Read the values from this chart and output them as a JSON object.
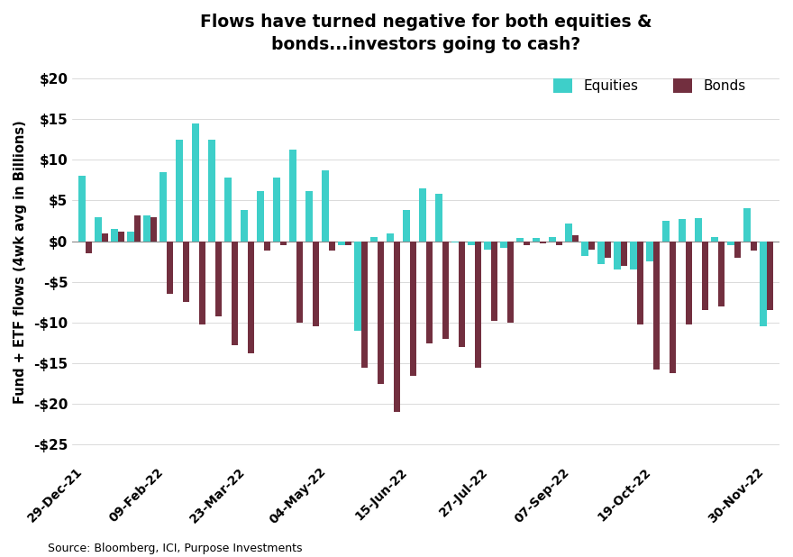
{
  "title": "Flows have turned negative for both equities &\nbonds...investors going to cash?",
  "ylabel": "Fund + ETF flows (4wk avg in Billions)",
  "source": "Source: Bloomberg, ICI, Purpose Investments",
  "equities_color": "#3ECFC9",
  "bonds_color": "#722F3F",
  "background_color": "#FFFFFF",
  "ylim": [
    -27,
    22
  ],
  "yticks": [
    -25,
    -20,
    -15,
    -10,
    -5,
    0,
    5,
    10,
    15,
    20
  ],
  "ytick_labels": [
    "-$25",
    "-$20",
    "-$15",
    "-$10",
    "-$5",
    "$0",
    "$5",
    "$10",
    "$15",
    "$20"
  ],
  "xtick_labels": [
    "29-Dec-21",
    "09-Feb-22",
    "23-Mar-22",
    "04-May-22",
    "15-Jun-22",
    "27-Jul-22",
    "07-Sep-22",
    "19-Oct-22",
    "30-Nov-22"
  ],
  "equities": [
    8.0,
    3.0,
    1.5,
    1.2,
    3.2,
    8.5,
    12.5,
    14.5,
    12.5,
    7.8,
    3.8,
    6.2,
    7.8,
    11.2,
    6.2,
    8.7,
    -0.5,
    -11.0,
    0.5,
    1.0,
    3.8,
    6.5,
    5.8,
    -0.2,
    -0.5,
    -1.0,
    -0.8,
    0.4,
    0.4,
    0.5,
    2.2,
    -1.8,
    -2.8,
    -3.5,
    -3.5,
    -2.5,
    2.5,
    2.7,
    2.8,
    0.5,
    -0.5,
    4.0,
    -10.5
  ],
  "bonds": [
    -1.5,
    1.0,
    1.2,
    3.2,
    3.0,
    -6.5,
    -7.5,
    -10.2,
    -9.2,
    -12.8,
    -13.8,
    -1.2,
    -0.5,
    -10.0,
    -10.5,
    -1.2,
    -0.5,
    -15.5,
    -17.5,
    -21.0,
    -16.5,
    -12.5,
    -12.0,
    -13.0,
    -15.5,
    -9.8,
    -10.0,
    -0.5,
    -0.3,
    -0.5,
    0.7,
    -1.0,
    -2.0,
    -3.0,
    -10.2,
    -15.8,
    -16.2,
    -10.2,
    -8.5,
    -8.0,
    -2.0,
    -1.2,
    -8.5
  ],
  "n_bars": 43
}
